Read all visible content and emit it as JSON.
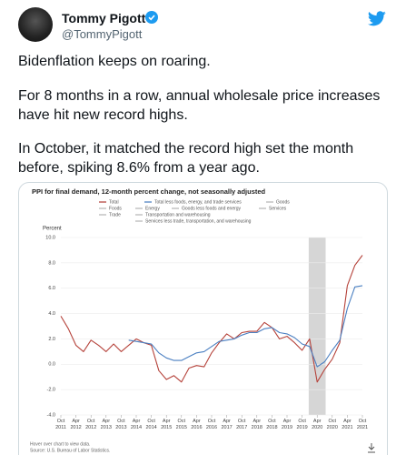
{
  "author": {
    "name": "Tommy Pigott",
    "handle": "@TommyPigott"
  },
  "tweet": {
    "paragraphs": [
      "Bidenflation keeps on roaring.",
      "For 8 months in a row, annual wholesale price increases have hit new record highs.",
      "In October, it matched the record high set the month before, spiking 8.6% from a year ago."
    ]
  },
  "chart_data": {
    "type": "line",
    "title": "PPI for final demand, 12-month percent change, not seasonally adjusted",
    "y_label": "Percent",
    "notes": [
      "Hover over chart to view data.",
      "Source: U.S. Bureau of Labor Statistics."
    ],
    "categories": [
      "Oct 2011",
      null,
      "Apr 2012",
      null,
      "Oct 2012",
      null,
      "Apr 2013",
      null,
      "Oct 2013",
      null,
      "Apr 2014",
      null,
      "Oct 2014",
      null,
      "Apr 2015",
      null,
      "Oct 2015",
      null,
      "Apr 2016",
      null,
      "Oct 2016",
      null,
      "Apr 2017",
      null,
      "Oct 2017",
      null,
      "Apr 2018",
      null,
      "Oct 2018",
      null,
      "Apr 2019",
      null,
      "Oct 2019",
      null,
      "Apr 2020",
      null,
      "Oct 2020",
      null,
      "Apr 2021",
      null,
      "Oct 2021"
    ],
    "series": [
      {
        "name": "Total",
        "color": "#b5423a",
        "values": [
          3.8,
          2.8,
          1.5,
          1.0,
          1.9,
          1.5,
          1.0,
          1.6,
          1.0,
          1.5,
          2.0,
          1.7,
          1.5,
          -0.5,
          -1.2,
          -0.9,
          -1.4,
          -0.3,
          -0.1,
          -0.2,
          0.9,
          1.7,
          2.4,
          2.0,
          2.5,
          2.6,
          2.6,
          3.3,
          2.9,
          2.0,
          2.2,
          1.7,
          1.1,
          2.0,
          -1.4,
          -0.4,
          0.4,
          1.7,
          6.2,
          7.8,
          8.6
        ]
      },
      {
        "name": "Total less foods, energy, and trade services",
        "color": "#4a7fc1",
        "values": [
          null,
          null,
          null,
          null,
          null,
          null,
          null,
          null,
          null,
          1.9,
          1.8,
          1.7,
          1.6,
          0.9,
          0.5,
          0.3,
          0.3,
          0.6,
          0.9,
          1.0,
          1.4,
          1.8,
          1.9,
          2.0,
          2.3,
          2.5,
          2.5,
          2.8,
          2.9,
          2.5,
          2.4,
          2.1,
          1.6,
          1.4,
          -0.2,
          0.2,
          1.1,
          1.9,
          4.4,
          6.1,
          6.2
        ]
      },
      {
        "name": "Goods",
        "color": "#b8b8b8"
      },
      {
        "name": "Foods",
        "color": "#b8b8b8"
      },
      {
        "name": "Energy",
        "color": "#b8b8b8"
      },
      {
        "name": "Goods less foods and energy",
        "color": "#b8b8b8"
      },
      {
        "name": "Services",
        "color": "#b8b8b8"
      },
      {
        "name": "Trade",
        "color": "#b8b8b8"
      },
      {
        "name": "Transportation and warehousing",
        "color": "#b8b8b8"
      },
      {
        "name": "Services less trade, transportation, and warehousing",
        "color": "#b8b8b8"
      }
    ],
    "ylim": [
      -4,
      10
    ],
    "yticks": [
      {
        "value": -4,
        "label": "-4.0"
      },
      {
        "value": -2,
        "label": "-2.0"
      },
      {
        "value": 0,
        "label": "0.0"
      },
      {
        "value": 2,
        "label": "2.0"
      },
      {
        "value": 4,
        "label": "4.0"
      },
      {
        "value": 6,
        "label": "6.0"
      },
      {
        "value": 8,
        "label": "8.0"
      },
      {
        "value": 10,
        "label": "10.0"
      }
    ],
    "grid": true,
    "recession_band": [
      33,
      35
    ]
  }
}
